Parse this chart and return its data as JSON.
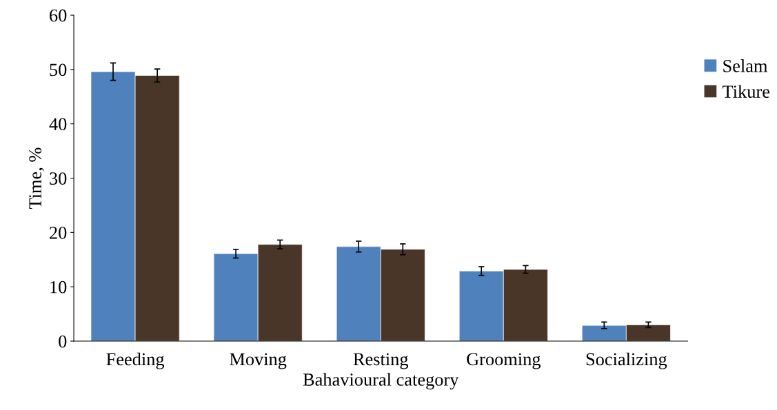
{
  "chart_data": {
    "type": "bar",
    "xlabel": "Bahavioural category",
    "ylabel": "Time, %",
    "categories": [
      "Feeding",
      "Moving",
      "Resting",
      "Grooming",
      "Socializing"
    ],
    "series": [
      {
        "name": "Selam",
        "color": "#4f81bd",
        "values": [
          49.6,
          16.1,
          17.4,
          12.9,
          2.9
        ],
        "errors": [
          1.6,
          0.8,
          1.0,
          0.8,
          0.6
        ]
      },
      {
        "name": "Tikure",
        "color": "#4a3628",
        "values": [
          48.9,
          17.8,
          16.9,
          13.2,
          3.0
        ],
        "errors": [
          1.2,
          0.8,
          1.0,
          0.7,
          0.5
        ]
      }
    ],
    "ylim": [
      0,
      60
    ],
    "yticks": [
      0,
      10,
      20,
      30,
      40,
      50,
      60
    ],
    "grid": false,
    "legend": "right"
  }
}
